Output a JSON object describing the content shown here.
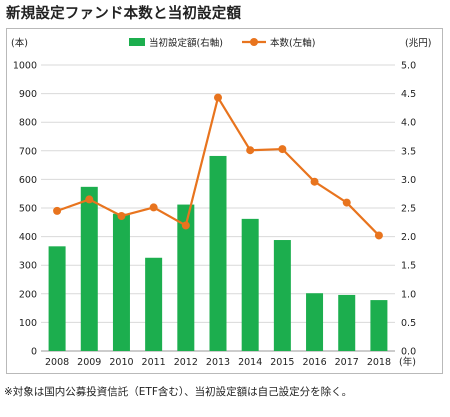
{
  "chart_data": {
    "type": "bar+line",
    "title": "新規設定ファンド本数と当初設定額",
    "categories": [
      "2008",
      "2009",
      "2010",
      "2011",
      "2012",
      "2013",
      "2014",
      "2015",
      "2016",
      "2017",
      "2018"
    ],
    "x_unit": "(年)",
    "left_axis": {
      "unit": "(本)",
      "min": 0,
      "max": 1000,
      "step": 100,
      "ticks": [
        "0",
        "100",
        "200",
        "300",
        "400",
        "500",
        "600",
        "700",
        "800",
        "900",
        "1000"
      ]
    },
    "right_axis": {
      "unit": "(兆円)",
      "min": 0,
      "max": 5,
      "step": 0.5,
      "ticks": [
        "0.0",
        "0.5",
        "1.0",
        "1.5",
        "2.0",
        "2.5",
        "3.0",
        "3.5",
        "4.0",
        "4.5",
        "5.0"
      ]
    },
    "series": [
      {
        "name": "当初設定額(右軸)",
        "type": "bar",
        "axis": "right",
        "color": "#1cae4e",
        "values": [
          1.83,
          2.87,
          2.4,
          1.63,
          2.56,
          3.41,
          2.31,
          1.94,
          1.01,
          0.98,
          0.89
        ]
      },
      {
        "name": "本数(左軸)",
        "type": "line",
        "axis": "left",
        "color": "#e8741e",
        "values": [
          490,
          530,
          472,
          502,
          439,
          886,
          702,
          706,
          592,
          519,
          404
        ]
      }
    ],
    "grid": true,
    "legend_position": "top"
  },
  "footnote": "※対象は国内公募投資信託（ETF含む）、当初設定額は自己設定分を除く。"
}
